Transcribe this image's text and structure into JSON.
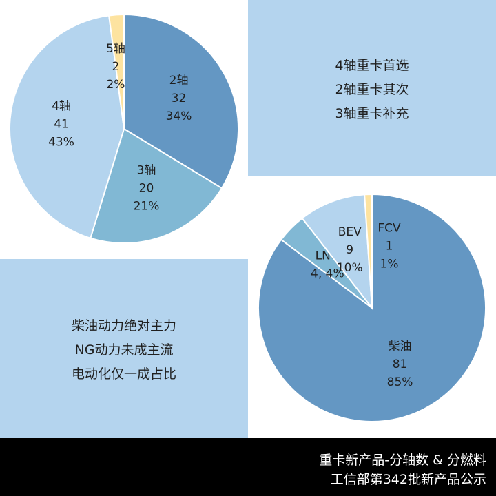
{
  "chart_data": [
    {
      "type": "pie",
      "slices": [
        {
          "name": "2轴",
          "value": 32,
          "percent": "34%",
          "color": "#6497c3"
        },
        {
          "name": "3轴",
          "value": 20,
          "percent": "21%",
          "color": "#81b8d4"
        },
        {
          "name": "4轴",
          "value": 41,
          "percent": "43%",
          "color": "#b4d4ee"
        },
        {
          "name": "5轴",
          "value": 2,
          "percent": "2%",
          "color": "#fde3a0"
        }
      ]
    },
    {
      "type": "pie",
      "slices": [
        {
          "name": "柴油",
          "value": 81,
          "percent": "85%",
          "color": "#6497c3"
        },
        {
          "name": "LNG",
          "value": 4,
          "percent": "4%",
          "color": "#81b8d4",
          "compact_label": "4, 4%"
        },
        {
          "name": "BEV",
          "value": 9,
          "percent": "10%",
          "color": "#b4d4ee"
        },
        {
          "name": "FCV",
          "value": 1,
          "percent": "1%",
          "color": "#fde3a0"
        }
      ]
    }
  ],
  "notes": {
    "axle": [
      "4轴重卡首选",
      "2轴重卡其次",
      "3轴重卡补充"
    ],
    "fuel": [
      "柴油动力绝对主力",
      "NG动力未成主流",
      "电动化仅一成占比"
    ]
  },
  "footer": {
    "line1": "重卡新产品-分轴数 & 分燃料",
    "line2": "工信部第342批新产品公示"
  },
  "colors": {
    "panel": "#b4d4ee",
    "footer_bg": "#000000",
    "footer_text": "#ffffff"
  }
}
